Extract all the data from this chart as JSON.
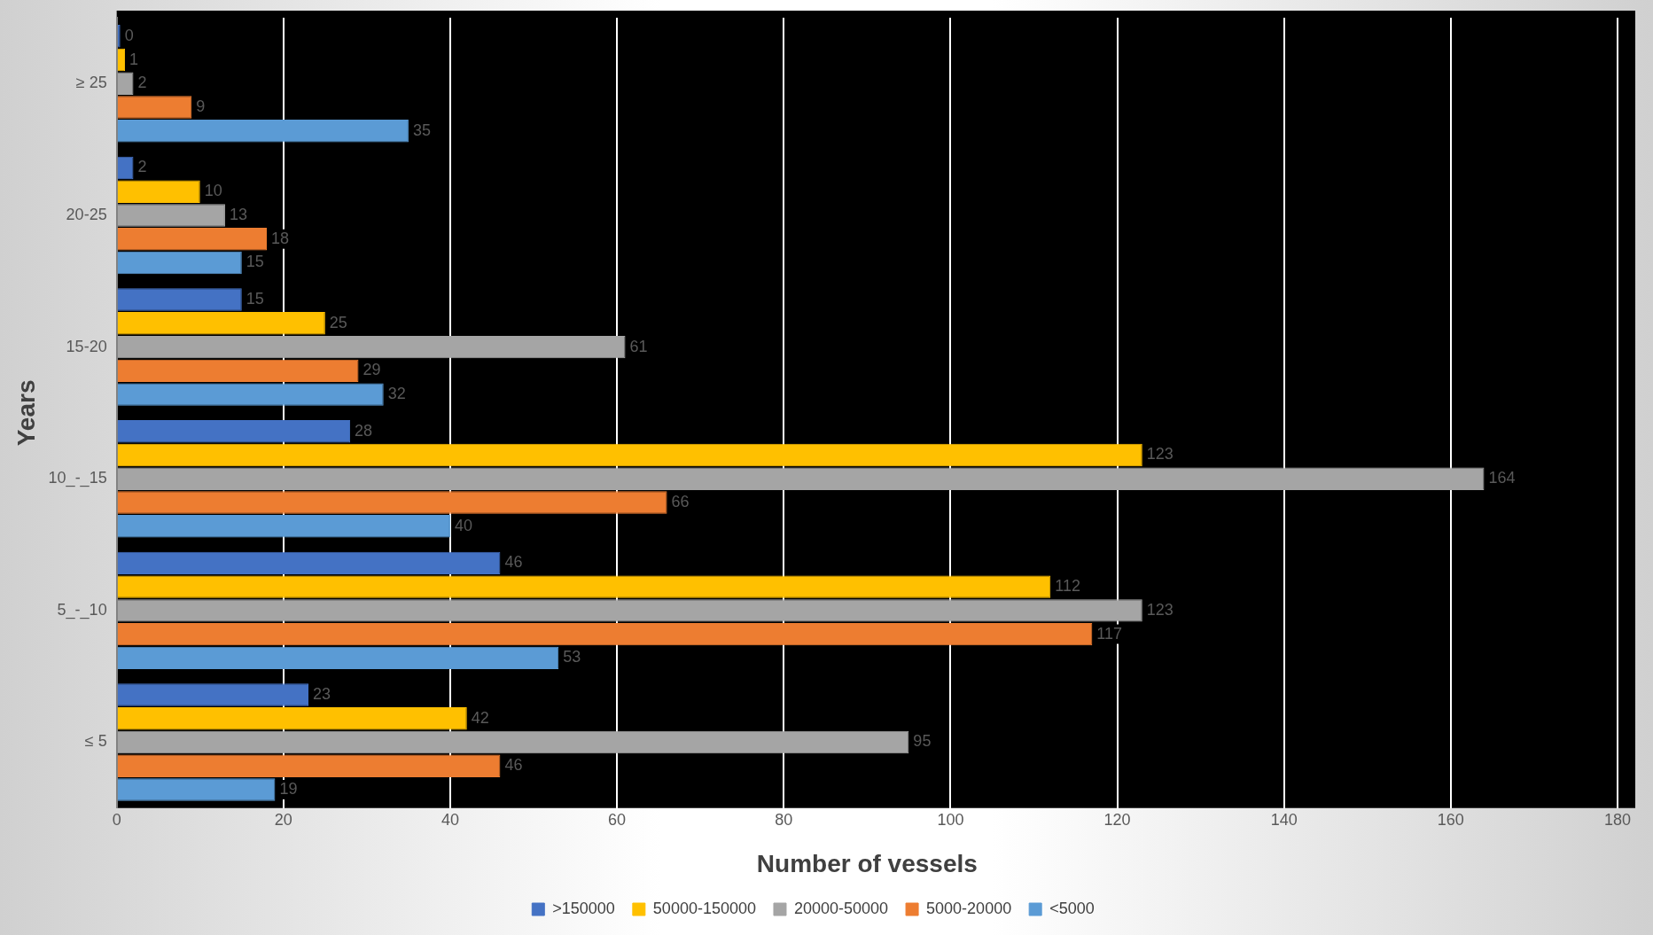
{
  "chart_data": {
    "type": "bar",
    "orientation": "horizontal",
    "xlabel": "Number of vessels",
    "ylabel": "Years",
    "categories": [
      "≥ 25",
      "20-25",
      "15-20",
      "10_-_15",
      "5_-_10",
      "≤ 5"
    ],
    "series": [
      {
        "name": ">150000",
        "color": "#4472c4",
        "values": [
          0,
          2,
          15,
          28,
          46,
          23
        ]
      },
      {
        "name": "50000-150000",
        "color": "#ffc000",
        "values": [
          1,
          10,
          25,
          123,
          112,
          42
        ]
      },
      {
        "name": "20000-50000",
        "color": "#a5a5a5",
        "values": [
          2,
          13,
          61,
          164,
          123,
          95
        ]
      },
      {
        "name": "5000-20000",
        "color": "#ed7d31",
        "values": [
          9,
          18,
          29,
          66,
          117,
          46
        ]
      },
      {
        "name": "<5000",
        "color": "#5b9bd5",
        "values": [
          35,
          15,
          32,
          40,
          53,
          19
        ]
      }
    ],
    "xlim": [
      0,
      180
    ],
    "xticks": [
      0,
      20,
      40,
      60,
      80,
      100,
      120,
      140,
      160,
      180
    ],
    "grid": "x",
    "legend": "bottom",
    "data_labels": true
  }
}
